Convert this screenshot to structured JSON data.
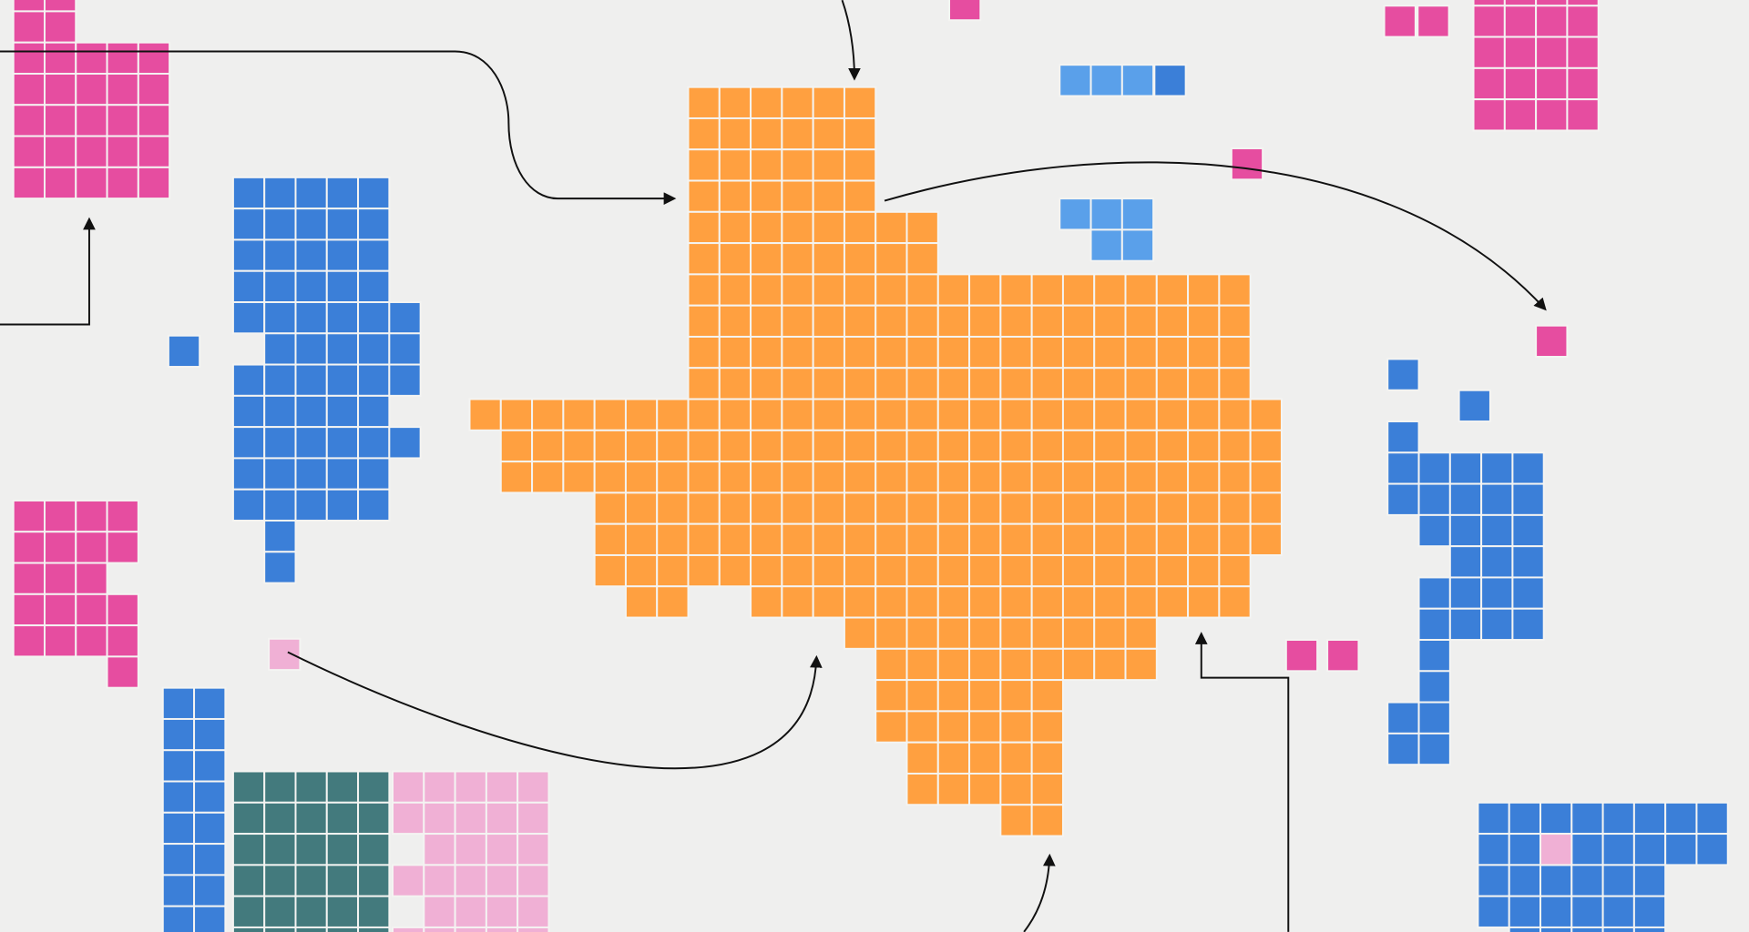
{
  "colors": {
    "background": "#efefee",
    "orange": "#ffa040",
    "pink": "#e64da0",
    "blue": "#3b7fd8",
    "light_blue": "#5aa0ea",
    "teal": "#437a7d",
    "light_pink": "#f0b0d5"
  }
}
